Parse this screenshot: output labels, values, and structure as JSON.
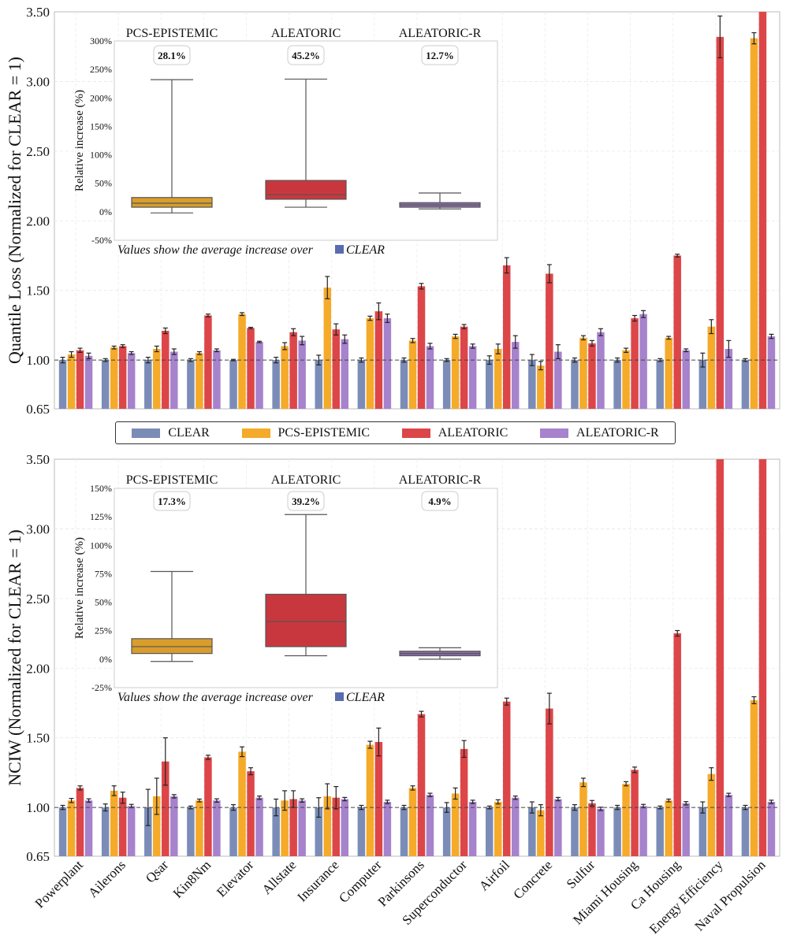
{
  "colors": {
    "CLEAR": "#7b8db7",
    "PCS-EPISTEMIC": "#f5aa29",
    "ALEATORIC": "#dd4648",
    "ALEATORIC-R": "#a683cc",
    "box_pcs": "#d99d2b",
    "box_ale": "#c9373e",
    "box_aler": "#8a6dab",
    "clear_marker": "#5a6cad"
  },
  "legend": {
    "items": [
      "CLEAR",
      "PCS-EPISTEMIC",
      "ALEATORIC",
      "ALEATORIC-R"
    ]
  },
  "chart_data": [
    {
      "type": "bar",
      "ylabel": "Quantile Loss (Normalized for CLEAR = 1)",
      "ylim": [
        0.65,
        3.5
      ],
      "yticks": [
        "0.65",
        "1.00",
        "1.50",
        "2.00",
        "2.50",
        "3.00",
        "3.50"
      ],
      "reference_line": 1.0,
      "categories": [
        "Powerplant",
        "Ailerons",
        "Qsar",
        "Kin8Nm",
        "Elevator",
        "Allstate",
        "Insurance",
        "Computer",
        "Parkinsons",
        "Superconductor",
        "Airfoil",
        "Concrete",
        "Sulfur",
        "Miami Housing",
        "Ca Housing",
        "Energy Efficiency",
        "Naval Propulsion"
      ],
      "series": [
        {
          "name": "CLEAR",
          "values": [
            1.0,
            1.0,
            1.0,
            1.0,
            1.0,
            1.0,
            1.0,
            1.0,
            1.0,
            1.0,
            1.0,
            1.0,
            1.0,
            1.0,
            1.0,
            1.0,
            1.0
          ],
          "errors": [
            0.02,
            0.01,
            0.02,
            0.01,
            0.005,
            0.02,
            0.035,
            0.015,
            0.015,
            0.01,
            0.03,
            0.04,
            0.015,
            0.015,
            0.01,
            0.05,
            0.01
          ]
        },
        {
          "name": "PCS-EPISTEMIC",
          "values": [
            1.04,
            1.09,
            1.08,
            1.05,
            1.33,
            1.1,
            1.52,
            1.3,
            1.14,
            1.17,
            1.08,
            0.96,
            1.16,
            1.07,
            1.16,
            1.24,
            3.31
          ],
          "errors": [
            0.02,
            0.01,
            0.02,
            0.01,
            0.01,
            0.025,
            0.08,
            0.015,
            0.015,
            0.015,
            0.035,
            0.03,
            0.015,
            0.015,
            0.01,
            0.05,
            0.04
          ]
        },
        {
          "name": "ALEATORIC",
          "values": [
            1.07,
            1.1,
            1.21,
            1.32,
            1.23,
            1.2,
            1.22,
            1.35,
            1.53,
            1.24,
            1.68,
            1.62,
            1.12,
            1.3,
            1.75,
            3.32,
            3.5
          ],
          "errors": [
            0.015,
            0.01,
            0.02,
            0.01,
            0.005,
            0.025,
            0.04,
            0.06,
            0.02,
            0.015,
            0.055,
            0.065,
            0.02,
            0.02,
            0.01,
            0.15,
            0.0
          ]
        },
        {
          "name": "ALEATORIC-R",
          "values": [
            1.03,
            1.05,
            1.06,
            1.07,
            1.13,
            1.14,
            1.15,
            1.3,
            1.1,
            1.1,
            1.13,
            1.06,
            1.2,
            1.33,
            1.07,
            1.08,
            1.17
          ],
          "errors": [
            0.02,
            0.01,
            0.02,
            0.01,
            0.005,
            0.03,
            0.03,
            0.03,
            0.02,
            0.015,
            0.045,
            0.05,
            0.025,
            0.025,
            0.01,
            0.06,
            0.015
          ]
        }
      ],
      "inset": {
        "type": "box",
        "ylabel": "Relative increase (%)",
        "yticks": [
          "-50%",
          "0%",
          "50%",
          "100%",
          "150%",
          "200%",
          "250%",
          "300%"
        ],
        "ylim": [
          -50,
          300
        ],
        "groups": [
          {
            "label": "PCS-EPISTEMIC",
            "badge": "28.1%",
            "min": -2,
            "q1": 8,
            "median": 15,
            "q3": 25,
            "max": 232
          },
          {
            "label": "ALEATORIC",
            "badge": "45.2%",
            "min": 8,
            "q1": 22,
            "median": 30,
            "q3": 55,
            "max": 233
          },
          {
            "label": "ALEATORIC-R",
            "badge": "12.7%",
            "min": 5,
            "q1": 8,
            "median": 12,
            "q3": 16,
            "max": 33
          }
        ],
        "caption": "Values show the average increase over",
        "caption_ref": "CLEAR"
      }
    },
    {
      "type": "bar",
      "ylabel": "NCIW (Normalized for CLEAR = 1)",
      "ylim": [
        0.65,
        3.5
      ],
      "yticks": [
        "0.65",
        "1.00",
        "1.50",
        "2.00",
        "2.50",
        "3.00",
        "3.50"
      ],
      "reference_line": 1.0,
      "categories": [
        "Powerplant",
        "Ailerons",
        "Qsar",
        "Kin8Nm",
        "Elevator",
        "Allstate",
        "Insurance",
        "Computer",
        "Parkinsons",
        "Superconductor",
        "Airfoil",
        "Concrete",
        "Sulfur",
        "Miami Housing",
        "Ca Housing",
        "Energy Efficiency",
        "Naval Propulsion"
      ],
      "series": [
        {
          "name": "CLEAR",
          "values": [
            1.0,
            1.0,
            1.0,
            1.0,
            1.0,
            1.0,
            1.0,
            1.0,
            1.0,
            1.0,
            1.0,
            1.0,
            1.0,
            1.0,
            1.0,
            1.0,
            1.0
          ],
          "errors": [
            0.015,
            0.025,
            0.13,
            0.01,
            0.02,
            0.06,
            0.07,
            0.015,
            0.015,
            0.035,
            0.01,
            0.04,
            0.02,
            0.015,
            0.01,
            0.04,
            0.015
          ]
        },
        {
          "name": "PCS-EPISTEMIC",
          "values": [
            1.05,
            1.12,
            1.08,
            1.05,
            1.4,
            1.05,
            1.08,
            1.45,
            1.14,
            1.1,
            1.04,
            0.98,
            1.18,
            1.17,
            1.05,
            1.24,
            1.77
          ],
          "errors": [
            0.015,
            0.035,
            0.13,
            0.01,
            0.035,
            0.07,
            0.09,
            0.025,
            0.015,
            0.04,
            0.015,
            0.04,
            0.03,
            0.015,
            0.01,
            0.045,
            0.025
          ]
        },
        {
          "name": "ALEATORIC",
          "values": [
            1.14,
            1.07,
            1.33,
            1.36,
            1.26,
            1.06,
            1.07,
            1.47,
            1.67,
            1.42,
            1.76,
            1.71,
            1.03,
            1.27,
            2.25,
            3.5,
            3.5
          ],
          "errors": [
            0.015,
            0.04,
            0.17,
            0.015,
            0.025,
            0.06,
            0.08,
            0.1,
            0.02,
            0.06,
            0.025,
            0.11,
            0.02,
            0.02,
            0.02,
            0.0,
            0.0
          ]
        },
        {
          "name": "ALEATORIC-R",
          "values": [
            1.05,
            1.01,
            1.08,
            1.05,
            1.07,
            1.05,
            1.06,
            1.04,
            1.09,
            1.04,
            1.07,
            1.06,
            0.99,
            1.01,
            1.03,
            1.09,
            1.04
          ]
        }
      ],
      "inset": {
        "type": "box",
        "ylabel": "Relative increase (%)",
        "yticks": [
          "-25%",
          "0%",
          "25%",
          "50%",
          "75%",
          "100%",
          "125%",
          "150%"
        ],
        "ylim": [
          -25,
          150
        ],
        "groups": [
          {
            "label": "PCS-EPISTEMIC",
            "badge": "17.3%",
            "min": -2,
            "q1": 5,
            "median": 11,
            "q3": 18,
            "max": 77
          },
          {
            "label": "ALEATORIC",
            "badge": "39.2%",
            "min": 3,
            "q1": 11,
            "median": 33,
            "q3": 57,
            "max": 127
          },
          {
            "label": "ALEATORIC-R",
            "badge": "4.9%",
            "min": 0,
            "q1": 3,
            "median": 5,
            "q3": 7,
            "max": 10
          }
        ],
        "caption": "Values show the average increase over",
        "caption_ref": "CLEAR"
      }
    }
  ]
}
